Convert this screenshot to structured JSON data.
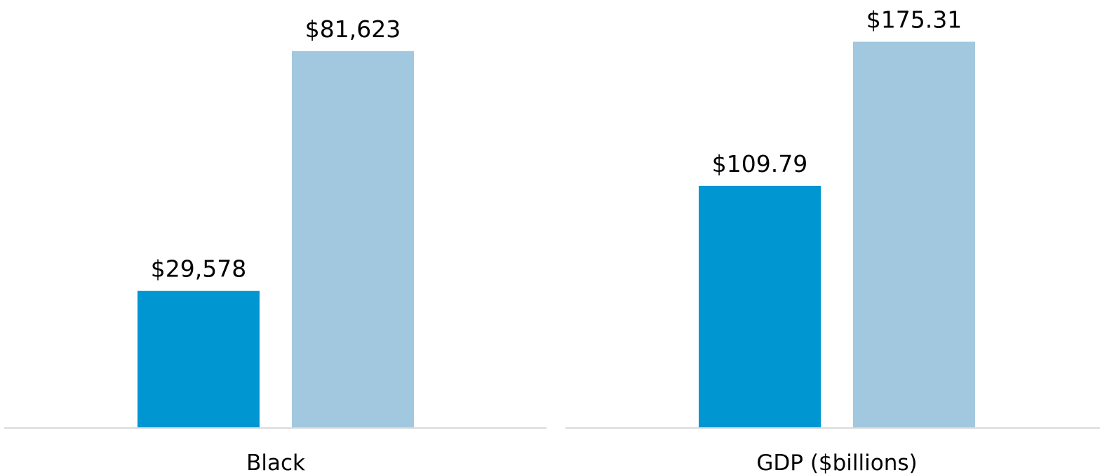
{
  "chart_data": [
    {
      "type": "bar",
      "categories": [
        "Black"
      ],
      "series": [
        {
          "color": "#0096d1",
          "values": [
            29578
          ],
          "value_labels": [
            "$29,578"
          ]
        },
        {
          "color": "#a1c8de",
          "values": [
            81623
          ],
          "value_labels": [
            "$81,623"
          ]
        }
      ],
      "ylim": [
        0,
        92700
      ]
    },
    {
      "type": "bar",
      "categories": [
        "GDP ($billions)"
      ],
      "series": [
        {
          "color": "#0096d1",
          "values": [
            109.79
          ],
          "value_labels": [
            "$109.79"
          ]
        },
        {
          "color": "#a1c8de",
          "values": [
            175.31
          ],
          "value_labels": [
            "$175.31"
          ]
        }
      ],
      "ylim": [
        0,
        194.3
      ]
    }
  ]
}
